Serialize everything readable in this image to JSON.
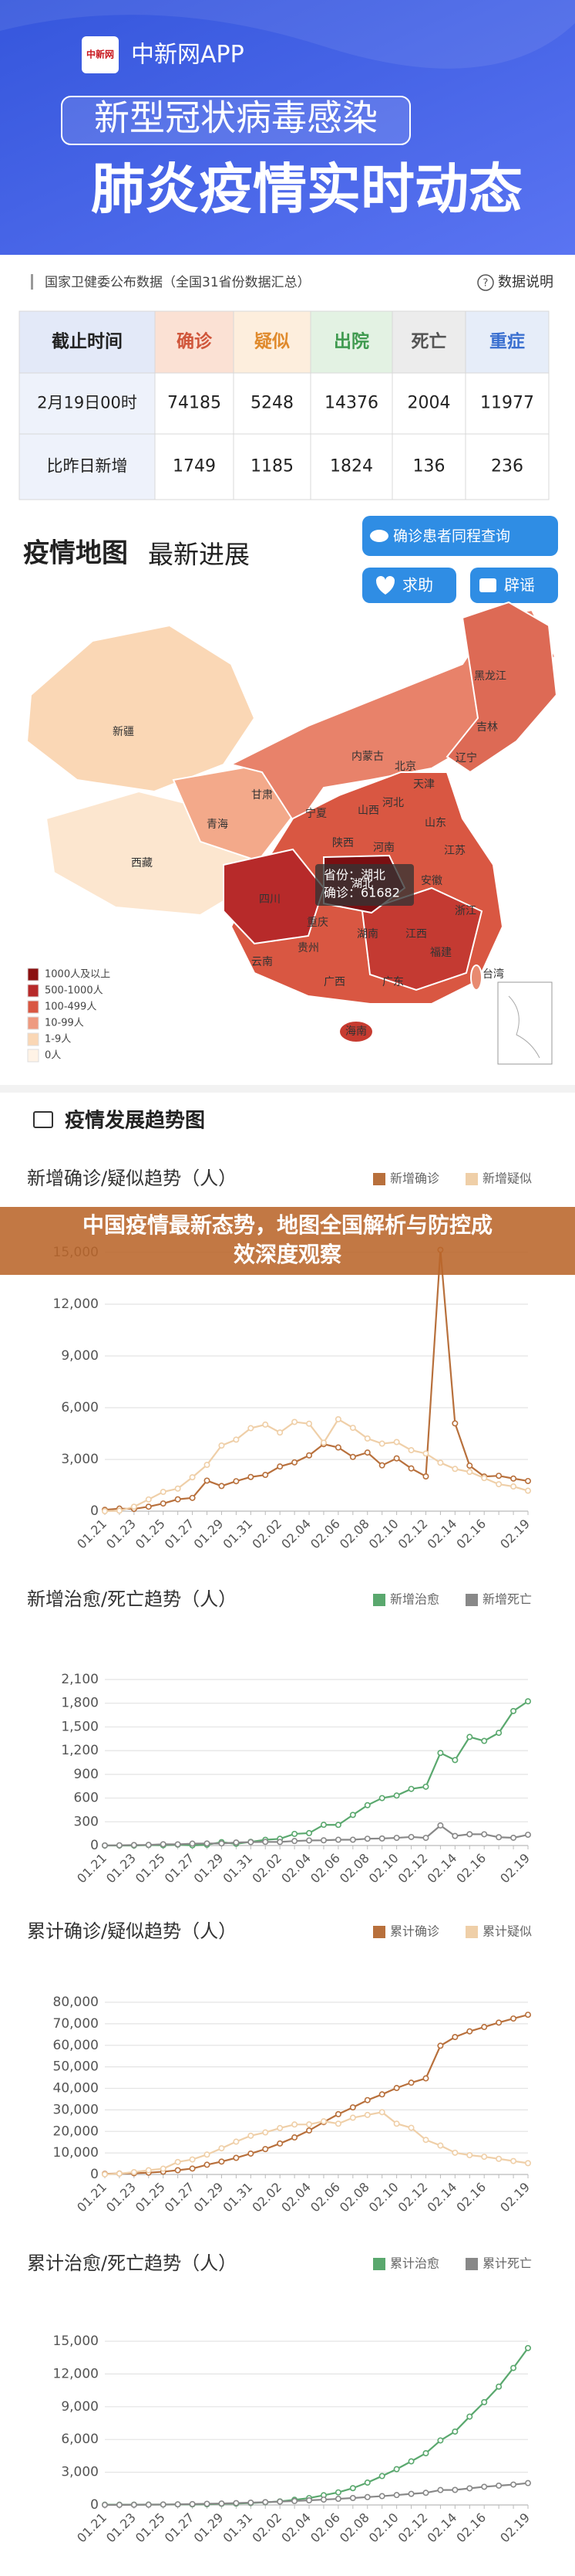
{
  "header": {
    "logo": "中新网",
    "app": "中新网APP",
    "title_1": "新型冠状病毒感染",
    "title_2": "肺炎疫情实时动态"
  },
  "source": {
    "text": "国家卫健委公布数据（全国31省份数据汇总）",
    "link": "数据说明"
  },
  "table": {
    "header": [
      "截止时间",
      "确诊",
      "疑似",
      "出院",
      "死亡",
      "重症"
    ],
    "rows": [
      [
        "2月19日00时",
        74185,
        5248,
        14376,
        2004,
        11977
      ],
      [
        "比昨日新增",
        1749,
        1185,
        1824,
        136,
        236
      ]
    ]
  },
  "map": {
    "title": "疫情地图",
    "subtitle": "最新进展",
    "buttons": [
      "确诊患者同程查询",
      "求助",
      "辟谣"
    ],
    "provinces": [
      "新疆",
      "西藏",
      "青海",
      "甘肃",
      "内蒙古",
      "黑龙江",
      "吉林",
      "辽宁",
      "北京",
      "天津",
      "河北",
      "山西",
      "宁夏",
      "陕西",
      "山东",
      "河南",
      "江苏",
      "安徽",
      "湖北",
      "四川",
      "重庆",
      "浙江",
      "湖南",
      "江西",
      "贵州",
      "云南",
      "福建",
      "广西",
      "广东",
      "台湾",
      "海南"
    ],
    "tooltip": {
      "province": "省份：湖北",
      "confirmed": "确诊：61682"
    },
    "legend": [
      "1000人及以上",
      "500-1000人",
      "100-499人",
      "10-99人",
      "1-9人",
      "0人"
    ]
  },
  "trend_title": "疫情发展趋势图",
  "banner": [
    "中国疫情最新态势，地图全国解析与防控成",
    "效深度观察"
  ],
  "chart_data": [
    {
      "type": "line",
      "title": "新增确诊/疑似趋势（人）",
      "categories": [
        "01.21",
        null,
        "01.23",
        null,
        "01.25",
        null,
        "01.27",
        null,
        "01.29",
        null,
        "01.31",
        null,
        "02.02",
        null,
        "02.04",
        null,
        "02.06",
        null,
        "02.08",
        null,
        "02.10",
        null,
        "02.12",
        null,
        "02.14",
        null,
        "02.16",
        null,
        null,
        "02.19"
      ],
      "series": [
        {
          "name": "新增确诊",
          "color": "#b8703c",
          "values": [
            77,
            149,
            131,
            259,
            444,
            688,
            769,
            1771,
            1459,
            1737,
            1982,
            2102,
            2590,
            2829,
            3235,
            3887,
            3694,
            3143,
            3399,
            2656,
            3062,
            2478,
            2015,
            15152,
            5090,
            2641,
            2009,
            2051,
            1891,
            1749
          ]
        },
        {
          "name": "新增疑似",
          "color": "#efcfa8",
          "values": [
            0,
            27,
            257,
            680,
            1118,
            1309,
            1965,
            2684,
            3806,
            4148,
            4812,
            5019,
            4562,
            5173,
            5072,
            3971,
            5328,
            4833,
            4214,
            3916,
            4008,
            3536,
            3342,
            2807,
            2450,
            2277,
            1918,
            1563,
            1432,
            1185
          ]
        }
      ],
      "ylim": [
        0,
        15000
      ],
      "yticks": [
        0,
        {
          "value": 3000,
          "label": "3,000"
        },
        {
          "value": 6000,
          "label": "6,000"
        },
        {
          "value": 9000,
          "label": "9,000"
        },
        {
          "value": 12000,
          "label": "12,000"
        },
        {
          "value": 15000,
          "label": "15,000"
        }
      ],
      "grid": true
    },
    {
      "type": "line",
      "title": "新增治愈/死亡趋势（人）",
      "categories": [
        "01.21",
        null,
        "01.23",
        null,
        "01.25",
        null,
        "01.27",
        null,
        "01.29",
        null,
        "01.31",
        null,
        "02.02",
        null,
        "02.04",
        null,
        "02.06",
        null,
        "02.08",
        null,
        "02.10",
        null,
        "02.12",
        null,
        "02.14",
        null,
        "02.16",
        null,
        null,
        "02.19"
      ],
      "series": [
        {
          "name": "新增治愈",
          "color": "#5aa86e",
          "values": [
            0,
            0,
            0,
            6,
            3,
            11,
            2,
            9,
            43,
            21,
            47,
            72,
            85,
            147,
            157,
            262,
            261,
            387,
            510,
            600,
            632,
            716,
            744,
            1171,
            1081,
            1373,
            1323,
            1425,
            1701,
            1824
          ]
        },
        {
          "name": "新增死亡",
          "color": "#888888",
          "values": [
            1,
            3,
            6,
            8,
            16,
            15,
            24,
            26,
            26,
            38,
            43,
            46,
            45,
            57,
            64,
            66,
            73,
            73,
            86,
            89,
            97,
            108,
            97,
            254,
            121,
            143,
            142,
            105,
            98,
            136
          ]
        }
      ],
      "ylim": [
        0,
        2100
      ],
      "yticks": [
        0,
        300,
        600,
        900,
        {
          "value": 1200,
          "label": "1,200"
        },
        {
          "value": 1500,
          "label": "1,500"
        },
        {
          "value": 1800,
          "label": "1,800"
        },
        {
          "value": 2100,
          "label": "2,100"
        }
      ],
      "grid": true
    },
    {
      "type": "line",
      "title": "累计确诊/疑似趋势（人）",
      "categories": [
        "01.21",
        null,
        "01.23",
        null,
        "01.25",
        null,
        "01.27",
        null,
        "01.29",
        null,
        "01.31",
        null,
        "02.02",
        null,
        "02.04",
        null,
        "02.06",
        null,
        "02.08",
        null,
        "02.10",
        null,
        "02.12",
        null,
        "02.14",
        null,
        "02.16",
        null,
        null,
        "02.19"
      ],
      "series": [
        {
          "name": "累计确诊",
          "color": "#b8703c",
          "values": [
            291,
            440,
            571,
            830,
            1287,
            1975,
            2744,
            4515,
            5974,
            7711,
            9692,
            11791,
            14380,
            17205,
            20438,
            24324,
            28018,
            31161,
            34546,
            37198,
            40171,
            42638,
            44653,
            59804,
            63851,
            66492,
            68500,
            70548,
            72436,
            74185
          ]
        },
        {
          "name": "累计疑似",
          "color": "#efcfa8",
          "values": [
            54,
            393,
            1072,
            1965,
            2684,
            5794,
            6973,
            9239,
            12167,
            15238,
            17988,
            19544,
            21558,
            23214,
            23260,
            24702,
            23589,
            26359,
            27657,
            28942,
            23589,
            21675,
            16067,
            13435,
            10109,
            8969,
            8228,
            7264,
            6242,
            5248
          ]
        }
      ],
      "ylim": [
        0,
        80000
      ],
      "yticks": [
        0,
        {
          "value": 10000,
          "label": "10,000"
        },
        {
          "value": 20000,
          "label": "20,000"
        },
        {
          "value": 30000,
          "label": "30,000"
        },
        {
          "value": 40000,
          "label": "40,000"
        },
        {
          "value": 50000,
          "label": "50,000"
        },
        {
          "value": 60000,
          "label": "60,000"
        },
        {
          "value": 70000,
          "label": "70,000"
        },
        {
          "value": 80000,
          "label": "80,000"
        }
      ],
      "grid": true
    },
    {
      "type": "line",
      "title": "累计治愈/死亡趋势（人）",
      "categories": [
        "01.21",
        null,
        "01.23",
        null,
        "01.25",
        null,
        "01.27",
        null,
        "01.29",
        null,
        "01.31",
        null,
        "02.02",
        null,
        "02.04",
        null,
        "02.06",
        null,
        "02.08",
        null,
        "02.10",
        null,
        "02.12",
        null,
        "02.14",
        null,
        "02.16",
        null,
        null,
        "02.19"
      ],
      "series": [
        {
          "name": "累计治愈",
          "color": "#5aa86e",
          "values": [
            25,
            25,
            28,
            34,
            38,
            49,
            51,
            60,
            103,
            124,
            171,
            243,
            328,
            475,
            632,
            892,
            1153,
            1540,
            2050,
            2649,
            3281,
            3996,
            4740,
            5911,
            6723,
            8096,
            9419,
            10844,
            12552,
            14376
          ]
        },
        {
          "name": "累计死亡",
          "color": "#888888",
          "values": [
            6,
            9,
            17,
            25,
            41,
            56,
            80,
            106,
            132,
            170,
            213,
            259,
            304,
            361,
            425,
            490,
            563,
            636,
            722,
            811,
            908,
            1016,
            1113,
            1367,
            1380,
            1523,
            1665,
            1770,
            1868,
            2004
          ]
        }
      ],
      "ylim": [
        0,
        15000
      ],
      "yticks": [
        0,
        {
          "value": 3000,
          "label": "3,000"
        },
        {
          "value": 6000,
          "label": "6,000"
        },
        {
          "value": 9000,
          "label": "9,000"
        },
        {
          "value": 12000,
          "label": "12,000"
        },
        {
          "value": 15000,
          "label": "15,000"
        }
      ],
      "grid": true
    }
  ]
}
